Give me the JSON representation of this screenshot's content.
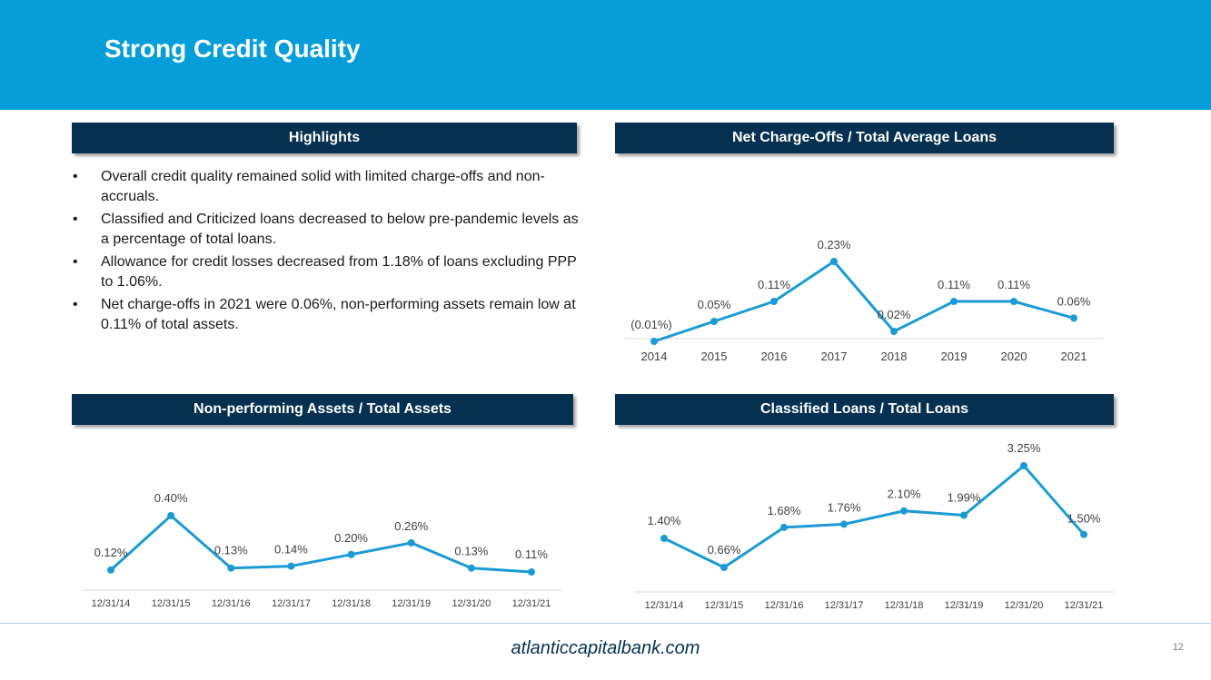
{
  "title": "Strong Credit Quality",
  "highlights": {
    "heading": "Highlights",
    "bullets": [
      "Overall credit quality remained solid with limited charge-offs and non-accruals.",
      "Classified and Criticized loans decreased to below pre-pandemic levels as a percentage of total loans.",
      "Allowance for credit losses decreased from 1.18% of loans excluding PPP to 1.06%.",
      "Net charge-offs in 2021 were 0.06%, non-performing assets remain low at 0.11% of total assets."
    ]
  },
  "colors": {
    "header": "#069ed9",
    "panel": "#05304f",
    "line": "#1a9bd5",
    "axis": "#d9d9d9",
    "label": "#404040"
  },
  "chart_data": [
    {
      "type": "line",
      "title": "Net Charge-Offs / Total Average Loans",
      "categories": [
        "2014",
        "2015",
        "2016",
        "2017",
        "2018",
        "2019",
        "2020",
        "2021"
      ],
      "values": [
        -0.01,
        0.05,
        0.11,
        0.23,
        0.02,
        0.11,
        0.11,
        0.06
      ],
      "labels": [
        "(0.01%)",
        "0.05%",
        "0.11%",
        "0.23%",
        "0.02%",
        "0.11%",
        "0.11%",
        "0.06%"
      ],
      "ylim": [
        -0.01,
        0.23
      ],
      "grid": false
    },
    {
      "type": "line",
      "title": "Non-performing Assets / Total Assets",
      "categories": [
        "12/31/14",
        "12/31/15",
        "12/31/16",
        "12/31/17",
        "12/31/18",
        "12/31/19",
        "12/31/20",
        "12/31/21"
      ],
      "values": [
        0.12,
        0.4,
        0.13,
        0.14,
        0.2,
        0.26,
        0.13,
        0.11
      ],
      "labels": [
        "0.12%",
        "0.40%",
        "0.13%",
        "0.14%",
        "0.20%",
        "0.26%",
        "0.13%",
        "0.11%"
      ],
      "ylim": [
        0.11,
        0.4
      ],
      "grid": false
    },
    {
      "type": "line",
      "title": "Classified Loans / Total Loans",
      "categories": [
        "12/31/14",
        "12/31/15",
        "12/31/16",
        "12/31/17",
        "12/31/18",
        "12/31/19",
        "12/31/20",
        "12/31/21"
      ],
      "values": [
        1.4,
        0.66,
        1.68,
        1.76,
        2.1,
        1.99,
        3.25,
        1.5
      ],
      "labels": [
        "1.40%",
        "0.66%",
        "1.68%",
        "1.76%",
        "2.10%",
        "1.99%",
        "3.25%",
        "1.50%"
      ],
      "ylim": [
        0.66,
        3.25
      ],
      "grid": false
    }
  ],
  "footer": {
    "url": "atlanticcapitalbank.com",
    "page_number": "12"
  }
}
